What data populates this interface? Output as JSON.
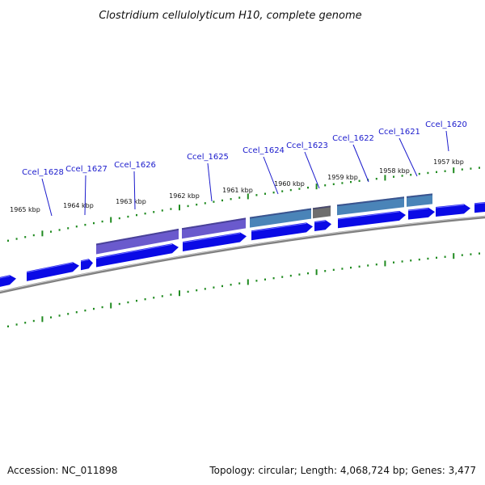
{
  "title": "Clostridium cellulolyticum H10, complete genome",
  "footer": {
    "accession": "Accession: NC_011898",
    "summary": "Topology: circular; Length: 4,068,724 bp; Genes: 3,477"
  },
  "colors": {
    "gene_arrow": "#0a0ae6",
    "gene_purple": "#6a5acd",
    "gene_steelblue": "#4a84b8",
    "gene_gray": "#6e6e6e",
    "backbone": "#808080",
    "ticks": "#1f8a1f",
    "labels": "#1a1acc"
  },
  "scale": {
    "kbp_labels": [
      "1965 kbp",
      "1964 kbp",
      "1963 kbp",
      "1962 kbp",
      "1961 kbp",
      "1960 kbp",
      "1959 kbp",
      "1958 kbp",
      "1957 kbp"
    ]
  },
  "genes": [
    {
      "label": "Ccel_1628"
    },
    {
      "label": "Ccel_1627"
    },
    {
      "label": "Ccel_1626"
    },
    {
      "label": "Ccel_1625"
    },
    {
      "label": "Ccel_1624"
    },
    {
      "label": "Ccel_1623"
    },
    {
      "label": "Ccel_1622"
    },
    {
      "label": "Ccel_1621"
    },
    {
      "label": "Ccel_1620"
    }
  ]
}
